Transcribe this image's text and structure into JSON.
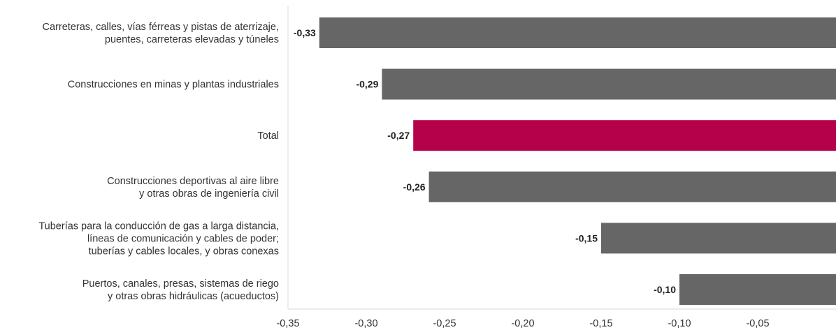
{
  "chart_data": {
    "type": "bar",
    "orientation": "horizontal",
    "title": "",
    "xlabel": "",
    "ylabel": "",
    "categories": [
      [
        "Carreteras, calles, vías férreas y pistas de aterrizaje,",
        "puentes, carreteras elevadas y túneles"
      ],
      [
        "Construcciones en minas y plantas industriales"
      ],
      [
        "Total"
      ],
      [
        "Construcciones deportivas al aire libre",
        "y otras obras de ingeniería civil"
      ],
      [
        "Tuberías para la conducción de gas a larga distancia,",
        "líneas de comunicación y cables de poder;",
        "tuberías y cables locales, y obras conexas"
      ],
      [
        "Puertos, canales, presas, sistemas de riego",
        "y otras obras hidráulicas (acueductos)"
      ]
    ],
    "values": [
      -0.33,
      -0.29,
      -0.27,
      -0.26,
      -0.15,
      -0.1
    ],
    "value_labels": [
      "-0,33",
      "-0,29",
      "-0,27",
      "-0,26",
      "-0,15",
      "-0,10"
    ],
    "colors": [
      "#666666",
      "#666666",
      "#b5004a",
      "#666666",
      "#666666",
      "#666666"
    ],
    "xlim": [
      -0.35,
      0.0
    ],
    "x_ticks": [
      -0.35,
      -0.3,
      -0.25,
      -0.2,
      -0.15,
      -0.1,
      -0.05
    ],
    "x_tick_labels": [
      "-0,35",
      "-0,30",
      "-0,25",
      "-0,20",
      "-0,15",
      "-0,10",
      "-0,05"
    ],
    "axis_color": "#d9d9d9",
    "grid": false,
    "legend": "none"
  }
}
